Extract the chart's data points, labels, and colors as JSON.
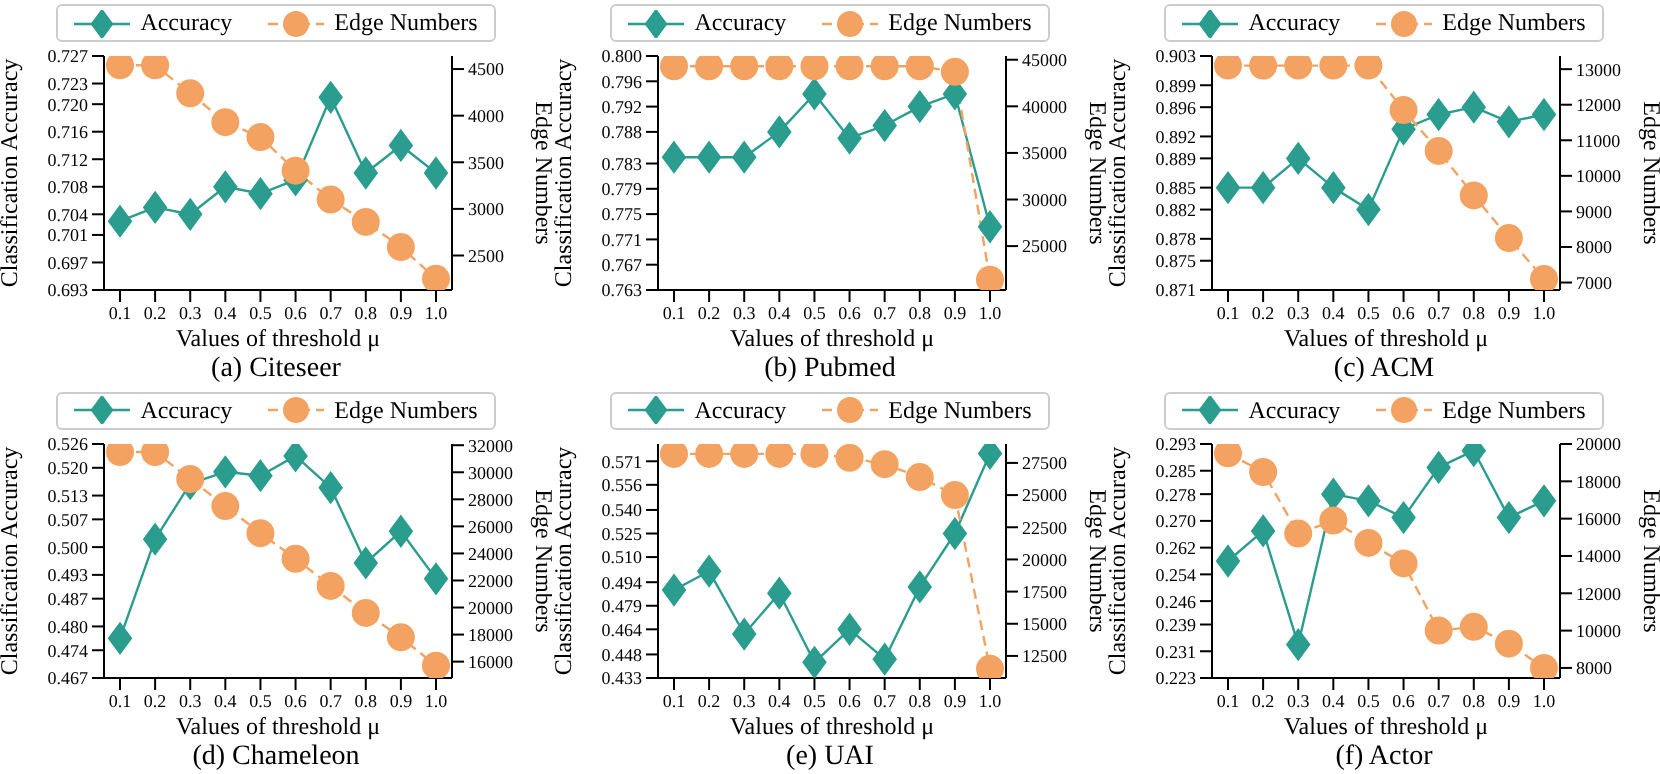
{
  "chart_data": [
    {
      "type": "line",
      "title": "(a) Citeseer",
      "xlabel": "Values of threshold μ",
      "ylabel": "Classification Accuracy",
      "y2label": "Edge Numbers",
      "legend": "top",
      "categories": [
        "0.1",
        "0.2",
        "0.3",
        "0.4",
        "0.5",
        "0.6",
        "0.7",
        "0.8",
        "0.9",
        "1.0"
      ],
      "ylim": [
        0.693,
        0.727
      ],
      "yticks": [
        0.693,
        0.697,
        0.701,
        0.704,
        0.708,
        0.712,
        0.716,
        {
          "value": 0.72,
          "label": "0.720"
        },
        0.723,
        0.727
      ],
      "y2lim": [
        2130,
        4640
      ],
      "y2ticks": [
        2500,
        3000,
        3500,
        4000,
        4500
      ],
      "series": [
        {
          "name": "Accuracy",
          "color": "#2a9d8f",
          "marker": "diamond",
          "line_style": "solid",
          "values": [
            0.703,
            0.705,
            0.704,
            0.708,
            0.707,
            0.709,
            0.721,
            0.71,
            0.714,
            0.71
          ]
        },
        {
          "name": "Edge Numbers",
          "color": "#f4a261",
          "marker": "circle",
          "line_style": "dashed",
          "axis": "y2",
          "values": [
            4540,
            4540,
            4240,
            3930,
            3770,
            3410,
            3100,
            2860,
            2590,
            2250
          ]
        }
      ]
    },
    {
      "type": "line",
      "title": "(b) Pubmed",
      "xlabel": "Values of threshold μ",
      "ylabel": "Classification Accuracy",
      "y2label": "Edge Numbers",
      "legend": "top",
      "categories": [
        "0.1",
        "0.2",
        "0.3",
        "0.4",
        "0.5",
        "0.6",
        "0.7",
        "0.8",
        "0.9",
        "1.0"
      ],
      "ylim": [
        0.763,
        0.8
      ],
      "yticks": [
        0.763,
        0.767,
        0.771,
        0.775,
        0.779,
        0.783,
        0.788,
        0.792,
        0.796,
        {
          "value": 0.8,
          "label": "0.800"
        }
      ],
      "y2lim": [
        20290,
        45400
      ],
      "y2ticks": [
        25000,
        30000,
        35000,
        40000,
        45000
      ],
      "series": [
        {
          "name": "Accuracy",
          "color": "#2a9d8f",
          "marker": "diamond",
          "line_style": "solid",
          "values": [
            0.784,
            0.784,
            0.784,
            0.788,
            0.794,
            0.787,
            0.789,
            0.792,
            0.794,
            0.773
          ]
        },
        {
          "name": "Edge Numbers",
          "color": "#f4a261",
          "marker": "circle",
          "line_style": "dashed",
          "axis": "y2",
          "values": [
            44300,
            44300,
            44300,
            44300,
            44300,
            44300,
            44300,
            44300,
            43700,
            21400
          ]
        }
      ]
    },
    {
      "type": "line",
      "title": "(c) ACM",
      "xlabel": "Values of threshold μ",
      "ylabel": "Classification Accuracy",
      "y2label": "Edge Numbers",
      "legend": "top",
      "categories": [
        "0.1",
        "0.2",
        "0.3",
        "0.4",
        "0.5",
        "0.6",
        "0.7",
        "0.8",
        "0.9",
        "1.0"
      ],
      "ylim": [
        0.871,
        0.903
      ],
      "yticks": [
        0.871,
        0.875,
        0.878,
        0.882,
        0.885,
        0.889,
        0.892,
        0.896,
        0.899,
        0.903
      ],
      "y2lim": [
        6790,
        13370
      ],
      "y2ticks": [
        7000,
        8000,
        9000,
        10000,
        11000,
        12000,
        13000
      ],
      "series": [
        {
          "name": "Accuracy",
          "color": "#2a9d8f",
          "marker": "diamond",
          "line_style": "solid",
          "values": [
            0.885,
            0.885,
            0.889,
            0.885,
            0.882,
            0.893,
            0.895,
            0.896,
            0.894,
            0.895
          ]
        },
        {
          "name": "Edge Numbers",
          "color": "#f4a261",
          "marker": "circle",
          "line_style": "dashed",
          "axis": "y2",
          "values": [
            13100,
            13100,
            13100,
            13100,
            13100,
            11850,
            10700,
            9450,
            8250,
            7100
          ]
        }
      ]
    },
    {
      "type": "line",
      "title": "(d) Chameleon",
      "xlabel": "Values of threshold μ",
      "ylabel": "Classification Accuracy",
      "y2label": "Edge Numbers",
      "legend": "top",
      "categories": [
        "0.1",
        "0.2",
        "0.3",
        "0.4",
        "0.5",
        "0.6",
        "0.7",
        "0.8",
        "0.9",
        "1.0"
      ],
      "ylim": [
        0.467,
        0.526
      ],
      "yticks": [
        0.467,
        0.474,
        {
          "value": 0.48,
          "label": "0.480"
        },
        0.487,
        0.493,
        {
          "value": 0.5,
          "label": "0.500"
        },
        0.507,
        0.513,
        {
          "value": 0.52,
          "label": "0.520"
        },
        0.526
      ],
      "y2lim": [
        14790,
        32090
      ],
      "y2ticks": [
        16000,
        18000,
        20000,
        22000,
        24000,
        26000,
        28000,
        30000,
        32000
      ],
      "series": [
        {
          "name": "Accuracy",
          "color": "#2a9d8f",
          "marker": "diamond",
          "line_style": "solid",
          "values": [
            0.477,
            0.502,
            0.516,
            0.519,
            0.518,
            0.523,
            0.515,
            0.496,
            0.504,
            0.492
          ]
        },
        {
          "name": "Edge Numbers",
          "color": "#f4a261",
          "marker": "circle",
          "line_style": "dashed",
          "axis": "y2",
          "values": [
            31500,
            31500,
            29500,
            27500,
            25500,
            23600,
            21600,
            19600,
            17800,
            15700
          ]
        }
      ]
    },
    {
      "type": "line",
      "title": "(e) UAI",
      "xlabel": "Values of threshold μ",
      "ylabel": "Classification Accuracy",
      "y2label": "Edge Numbers",
      "legend": "top",
      "categories": [
        "0.1",
        "0.2",
        "0.3",
        "0.4",
        "0.5",
        "0.6",
        "0.7",
        "0.8",
        "0.9",
        "1.0"
      ],
      "ylim": [
        0.433,
        0.582
      ],
      "yticks": [
        0.433,
        0.448,
        0.464,
        0.479,
        0.494,
        {
          "value": 0.51,
          "label": "0.510"
        },
        0.525,
        {
          "value": 0.54,
          "label": "0.540"
        },
        0.556,
        0.571
      ],
      "y2lim": [
        10785,
        28970
      ],
      "y2ticks": [
        12500,
        15000,
        17500,
        20000,
        22500,
        25000,
        27500
      ],
      "series": [
        {
          "name": "Accuracy",
          "color": "#2a9d8f",
          "marker": "diamond",
          "line_style": "solid",
          "values": [
            0.489,
            0.501,
            0.461,
            0.487,
            0.443,
            0.464,
            0.445,
            0.491,
            0.525,
            0.576
          ]
        },
        {
          "name": "Edge Numbers",
          "color": "#f4a261",
          "marker": "circle",
          "line_style": "dashed",
          "axis": "y2",
          "values": [
            28200,
            28200,
            28200,
            28200,
            28200,
            27900,
            27400,
            26400,
            25000,
            11500
          ]
        }
      ]
    },
    {
      "type": "line",
      "title": "(f) Actor",
      "xlabel": "Values of threshold μ",
      "ylabel": "Classification Accuracy",
      "y2label": "Edge Numbers",
      "legend": "top",
      "categories": [
        "0.1",
        "0.2",
        "0.3",
        "0.4",
        "0.5",
        "0.6",
        "0.7",
        "0.8",
        "0.9",
        "1.0"
      ],
      "ylim": [
        0.223,
        0.293
      ],
      "yticks": [
        0.223,
        0.231,
        0.239,
        0.246,
        0.254,
        0.262,
        {
          "value": 0.27,
          "label": "0.270"
        },
        0.278,
        0.285,
        0.293
      ],
      "y2lim": [
        7460,
        20000
      ],
      "y2ticks": [
        8000,
        10000,
        12000,
        14000,
        16000,
        18000,
        20000
      ],
      "series": [
        {
          "name": "Accuracy",
          "color": "#2a9d8f",
          "marker": "diamond",
          "line_style": "solid",
          "values": [
            0.258,
            0.267,
            0.233,
            0.278,
            0.276,
            0.271,
            0.286,
            0.291,
            0.271,
            0.276
          ]
        },
        {
          "name": "Edge Numbers",
          "color": "#f4a261",
          "marker": "circle",
          "line_style": "dashed",
          "axis": "y2",
          "values": [
            19500,
            18500,
            15200,
            15900,
            14700,
            13600,
            10000,
            10200,
            9300,
            8000
          ]
        }
      ]
    }
  ]
}
